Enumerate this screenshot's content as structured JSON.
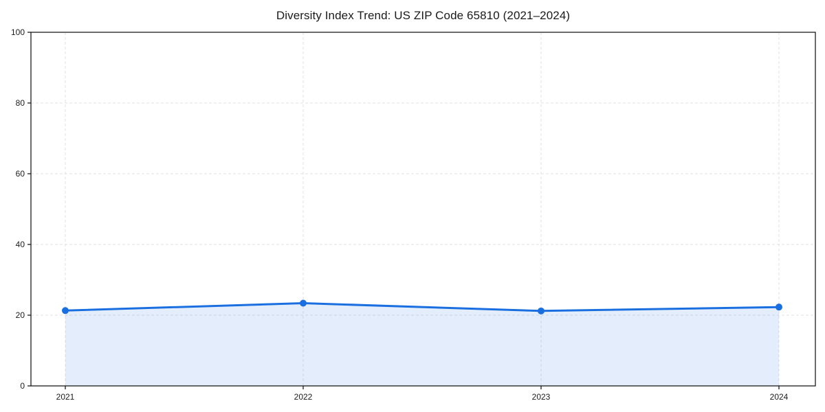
{
  "chart_data": {
    "type": "area",
    "title": "Diversity Index Trend: US ZIP Code 65810 (2021–2024)",
    "categories": [
      "2021",
      "2022",
      "2023",
      "2024"
    ],
    "series": [
      {
        "name": "Diversity Index",
        "values": [
          21.3,
          23.4,
          21.2,
          22.3
        ]
      }
    ],
    "xlabel": "",
    "ylabel": "",
    "ylim": [
      0,
      100
    ],
    "yticks": [
      0,
      20,
      40,
      60,
      80,
      100
    ],
    "grid": true,
    "grid_style": "dashed",
    "legend_position": "none",
    "colors": {
      "line": "#1a6fe0",
      "marker": "#1a6fe0",
      "fill": "rgba(26,111,224,0.12)",
      "grid": "#e2e2e2",
      "axis": "#1a1a1a",
      "text": "#1a1a1a",
      "background": "#ffffff"
    }
  }
}
